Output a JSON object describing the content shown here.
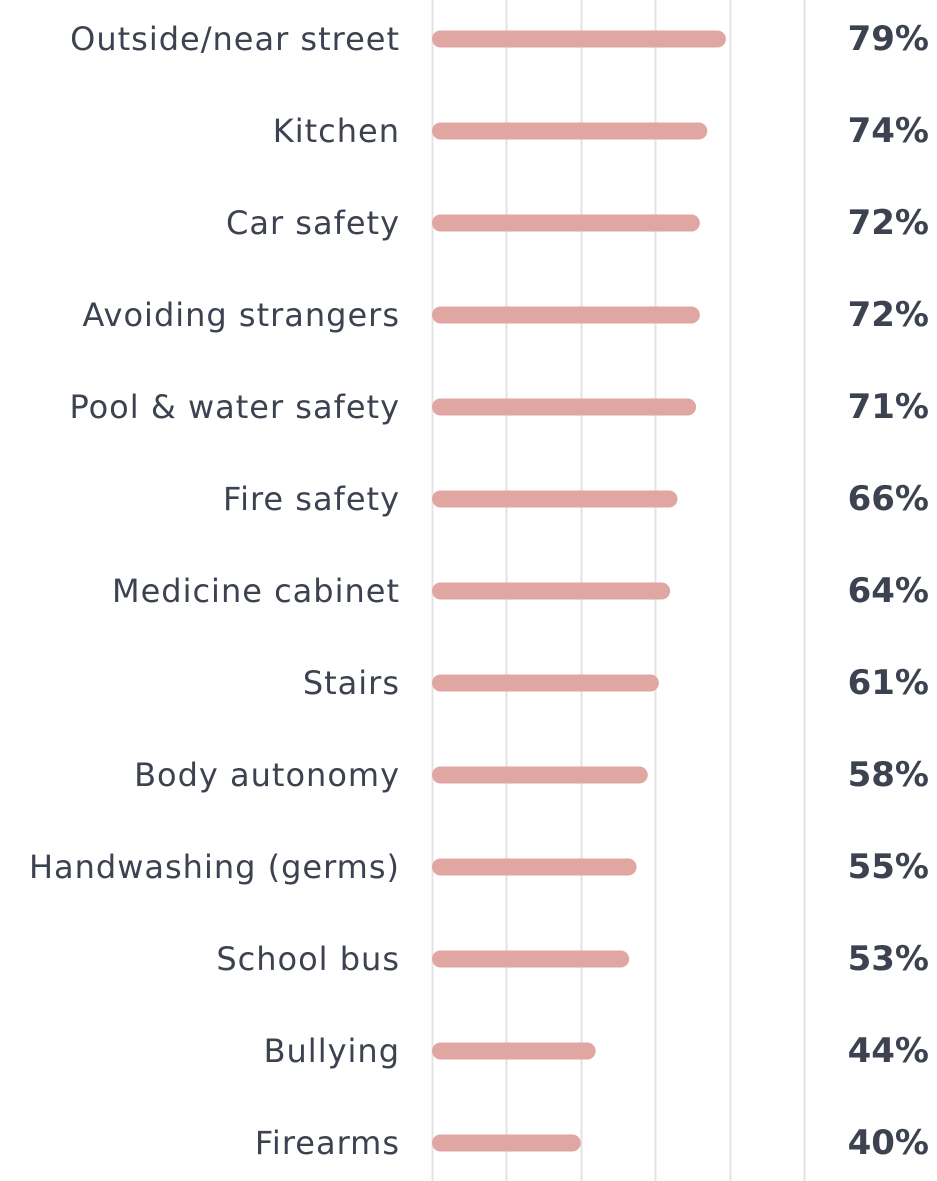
{
  "chart_data": {
    "type": "bar",
    "orientation": "horizontal",
    "categories": [
      "Outside/near street",
      "Kitchen",
      "Car safety",
      "Avoiding strangers",
      "Pool & water safety",
      "Fire safety",
      "Medicine cabinet",
      "Stairs",
      "Body autonomy",
      "Handwashing (germs)",
      "School bus",
      "Bullying",
      "Firearms"
    ],
    "values": [
      79,
      74,
      72,
      72,
      71,
      66,
      64,
      61,
      58,
      55,
      53,
      44,
      40
    ],
    "value_labels": [
      "79%",
      "74%",
      "72%",
      "72%",
      "71%",
      "66%",
      "64%",
      "61%",
      "58%",
      "55%",
      "53%",
      "44%",
      "40%"
    ],
    "xlim": [
      0,
      100
    ],
    "grid": true,
    "legend": "none",
    "title": "",
    "xlabel": "",
    "ylabel": "",
    "colors": {
      "bar": "#dfa6a2",
      "label": "#3c4250",
      "value": "#3c4250",
      "grid": "#e3e3e3"
    }
  }
}
